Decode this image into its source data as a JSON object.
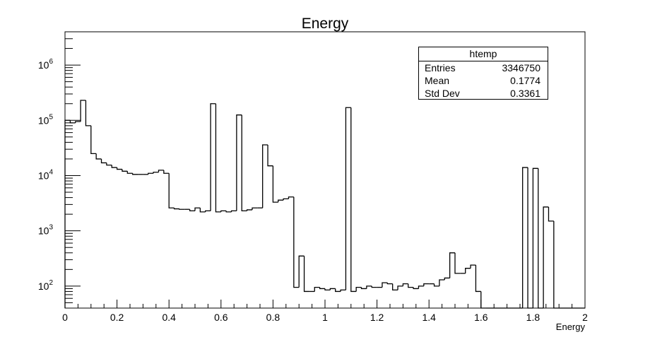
{
  "chart_data": {
    "type": "histogram",
    "title": "Energy",
    "xlabel": "Energy",
    "ylabel": "",
    "xlim": [
      0,
      2
    ],
    "ylim": [
      40,
      4000000
    ],
    "yscale": "log",
    "grid": false,
    "legend": "none",
    "line_color": "#000000",
    "bin_width": 0.02,
    "bins_x0": 0,
    "values": [
      100000,
      90000,
      95000,
      230000,
      80000,
      25000,
      20000,
      17000,
      15500,
      14000,
      13000,
      12000,
      11000,
      10500,
      10500,
      10500,
      11000,
      11500,
      12500,
      11000,
      2600,
      2500,
      2450,
      2450,
      2300,
      2600,
      2200,
      2300,
      200000,
      2200,
      2300,
      2200,
      2300,
      125000,
      2300,
      2400,
      2600,
      2600,
      36000,
      15000,
      3300,
      3600,
      3800,
      4100,
      95,
      350,
      80,
      80,
      95,
      90,
      85,
      90,
      80,
      85,
      170000,
      80,
      95,
      90,
      100,
      95,
      95,
      115,
      110,
      85,
      100,
      110,
      95,
      90,
      100,
      110,
      110,
      100,
      130,
      140,
      400,
      170,
      170,
      210,
      240,
      80,
      0,
      0,
      0,
      0,
      0,
      0,
      0,
      0,
      14000,
      0,
      13500,
      0,
      2700,
      1500,
      0,
      0,
      0,
      0,
      0,
      0
    ],
    "x_ticks": [
      0,
      0.2,
      0.4,
      0.6,
      0.8,
      1,
      1.2,
      1.4,
      1.6,
      1.8,
      2
    ],
    "x_tick_labels": [
      "0",
      "0.2",
      "0.4",
      "0.6",
      "0.8",
      "1",
      "1.2",
      "1.4",
      "1.6",
      "1.8",
      "2"
    ],
    "y_ticks": [
      100,
      1000,
      10000,
      100000,
      1000000
    ],
    "y_tick_labels": [
      {
        "base": "10",
        "exp": "2"
      },
      {
        "base": "10",
        "exp": "3"
      },
      {
        "base": "10",
        "exp": "4"
      },
      {
        "base": "10",
        "exp": "5"
      },
      {
        "base": "10",
        "exp": "6"
      }
    ],
    "stats": {
      "title": "htemp",
      "rows": [
        {
          "key": "Entries",
          "value": "3346750"
        },
        {
          "key": "Mean",
          "value": "0.1774"
        },
        {
          "key": "Std Dev",
          "value": "0.3361"
        }
      ]
    }
  }
}
